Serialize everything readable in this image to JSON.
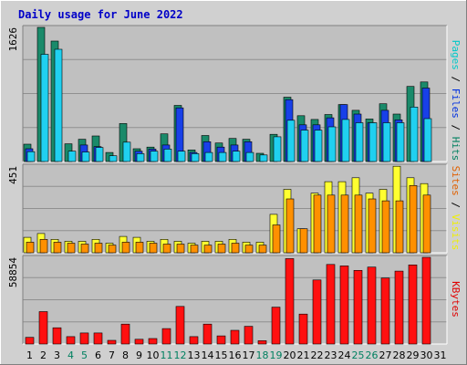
{
  "chart_data": {
    "type": "bar",
    "title": "Daily usage for June 2022",
    "x": [
      "1",
      "2",
      "3",
      "4",
      "5",
      "6",
      "7",
      "8",
      "9",
      "10",
      "11",
      "12",
      "13",
      "14",
      "15",
      "16",
      "17",
      "18",
      "19",
      "20",
      "21",
      "22",
      "23",
      "24",
      "25",
      "26",
      "27",
      "28",
      "29",
      "30",
      "31"
    ],
    "weekend_days": [
      "4",
      "5",
      "11",
      "12",
      "18",
      "19",
      "25",
      "26"
    ],
    "panels": [
      {
        "ymax_label": "1626",
        "ymax": 1626,
        "label_parts": [
          {
            "text": "Pages",
            "color": "#00c8c8"
          },
          {
            "text": " / ",
            "color": "#000000"
          },
          {
            "text": "Files",
            "color": "#0030e0"
          },
          {
            "text": " / ",
            "color": "#000000"
          },
          {
            "text": "Hits",
            "color": "#008060"
          }
        ],
        "series": [
          {
            "name": "Hits",
            "color": "#1a8a6a",
            "values": [
              210,
              1626,
              1460,
              215,
              270,
              310,
              110,
              460,
              155,
              175,
              335,
              680,
              140,
              315,
              225,
              280,
              270,
              100,
              330,
              780,
              555,
              510,
              570,
              690,
              620,
              515,
              700,
              575,
              910,
              965,
              0
            ]
          },
          {
            "name": "Files",
            "color": "#1840e8",
            "values": [
              155,
              0,
              0,
              0,
              200,
              180,
              0,
              0,
              125,
              150,
              200,
              650,
              110,
              240,
              175,
              200,
              240,
              0,
              0,
              750,
              445,
              445,
              530,
              690,
              575,
              470,
              620,
              505,
              0,
              890,
              0
            ]
          },
          {
            "name": "Pages",
            "color": "#20d0f0",
            "values": [
              120,
              1300,
              1360,
              125,
              115,
              170,
              70,
              235,
              95,
              125,
              150,
              125,
              95,
              110,
              110,
              125,
              110,
              80,
              300,
              500,
              380,
              380,
              420,
              510,
              470,
              470,
              470,
              470,
              660,
              520,
              0
            ]
          }
        ]
      },
      {
        "ymax_label": "451",
        "ymax": 451,
        "label_parts": [
          {
            "text": "Sites",
            "color": "#e06000"
          },
          {
            "text": " / ",
            "color": "#000000"
          },
          {
            "text": "Visits",
            "color": "#f0f000"
          }
        ],
        "series": [
          {
            "name": "Visits",
            "color": "#ffff30",
            "values": [
              80,
              100,
              70,
              60,
              60,
              70,
              50,
              85,
              80,
              60,
              70,
              60,
              50,
              60,
              60,
              70,
              55,
              55,
              200,
              330,
              125,
              310,
              370,
              370,
              390,
              310,
              330,
              450,
              390,
              360,
              0
            ]
          },
          {
            "name": "Sites",
            "color": "#ff9000",
            "values": [
              55,
              70,
              55,
              50,
              45,
              50,
              40,
              55,
              55,
              50,
              45,
              45,
              40,
              40,
              45,
              50,
              40,
              40,
              145,
              280,
              125,
              300,
              300,
              300,
              300,
              280,
              270,
              270,
              350,
              300,
              0
            ]
          }
        ]
      },
      {
        "ymax_label": "58854",
        "ymax": 58854,
        "label_parts": [
          {
            "text": "KBytes",
            "color": "#e00000"
          }
        ],
        "series": [
          {
            "name": "KBytes",
            "color": "#ff1010",
            "values": [
              4500,
              22000,
              11000,
              5000,
              7500,
              7500,
              2500,
              13500,
              3200,
              3700,
              10500,
              25500,
              5000,
              13500,
              5500,
              9300,
              12000,
              2200,
              25000,
              58000,
              20300,
              43500,
              54000,
              53000,
              50000,
              52200,
              44800,
              49500,
              53700,
              58854,
              0
            ]
          }
        ]
      }
    ]
  }
}
